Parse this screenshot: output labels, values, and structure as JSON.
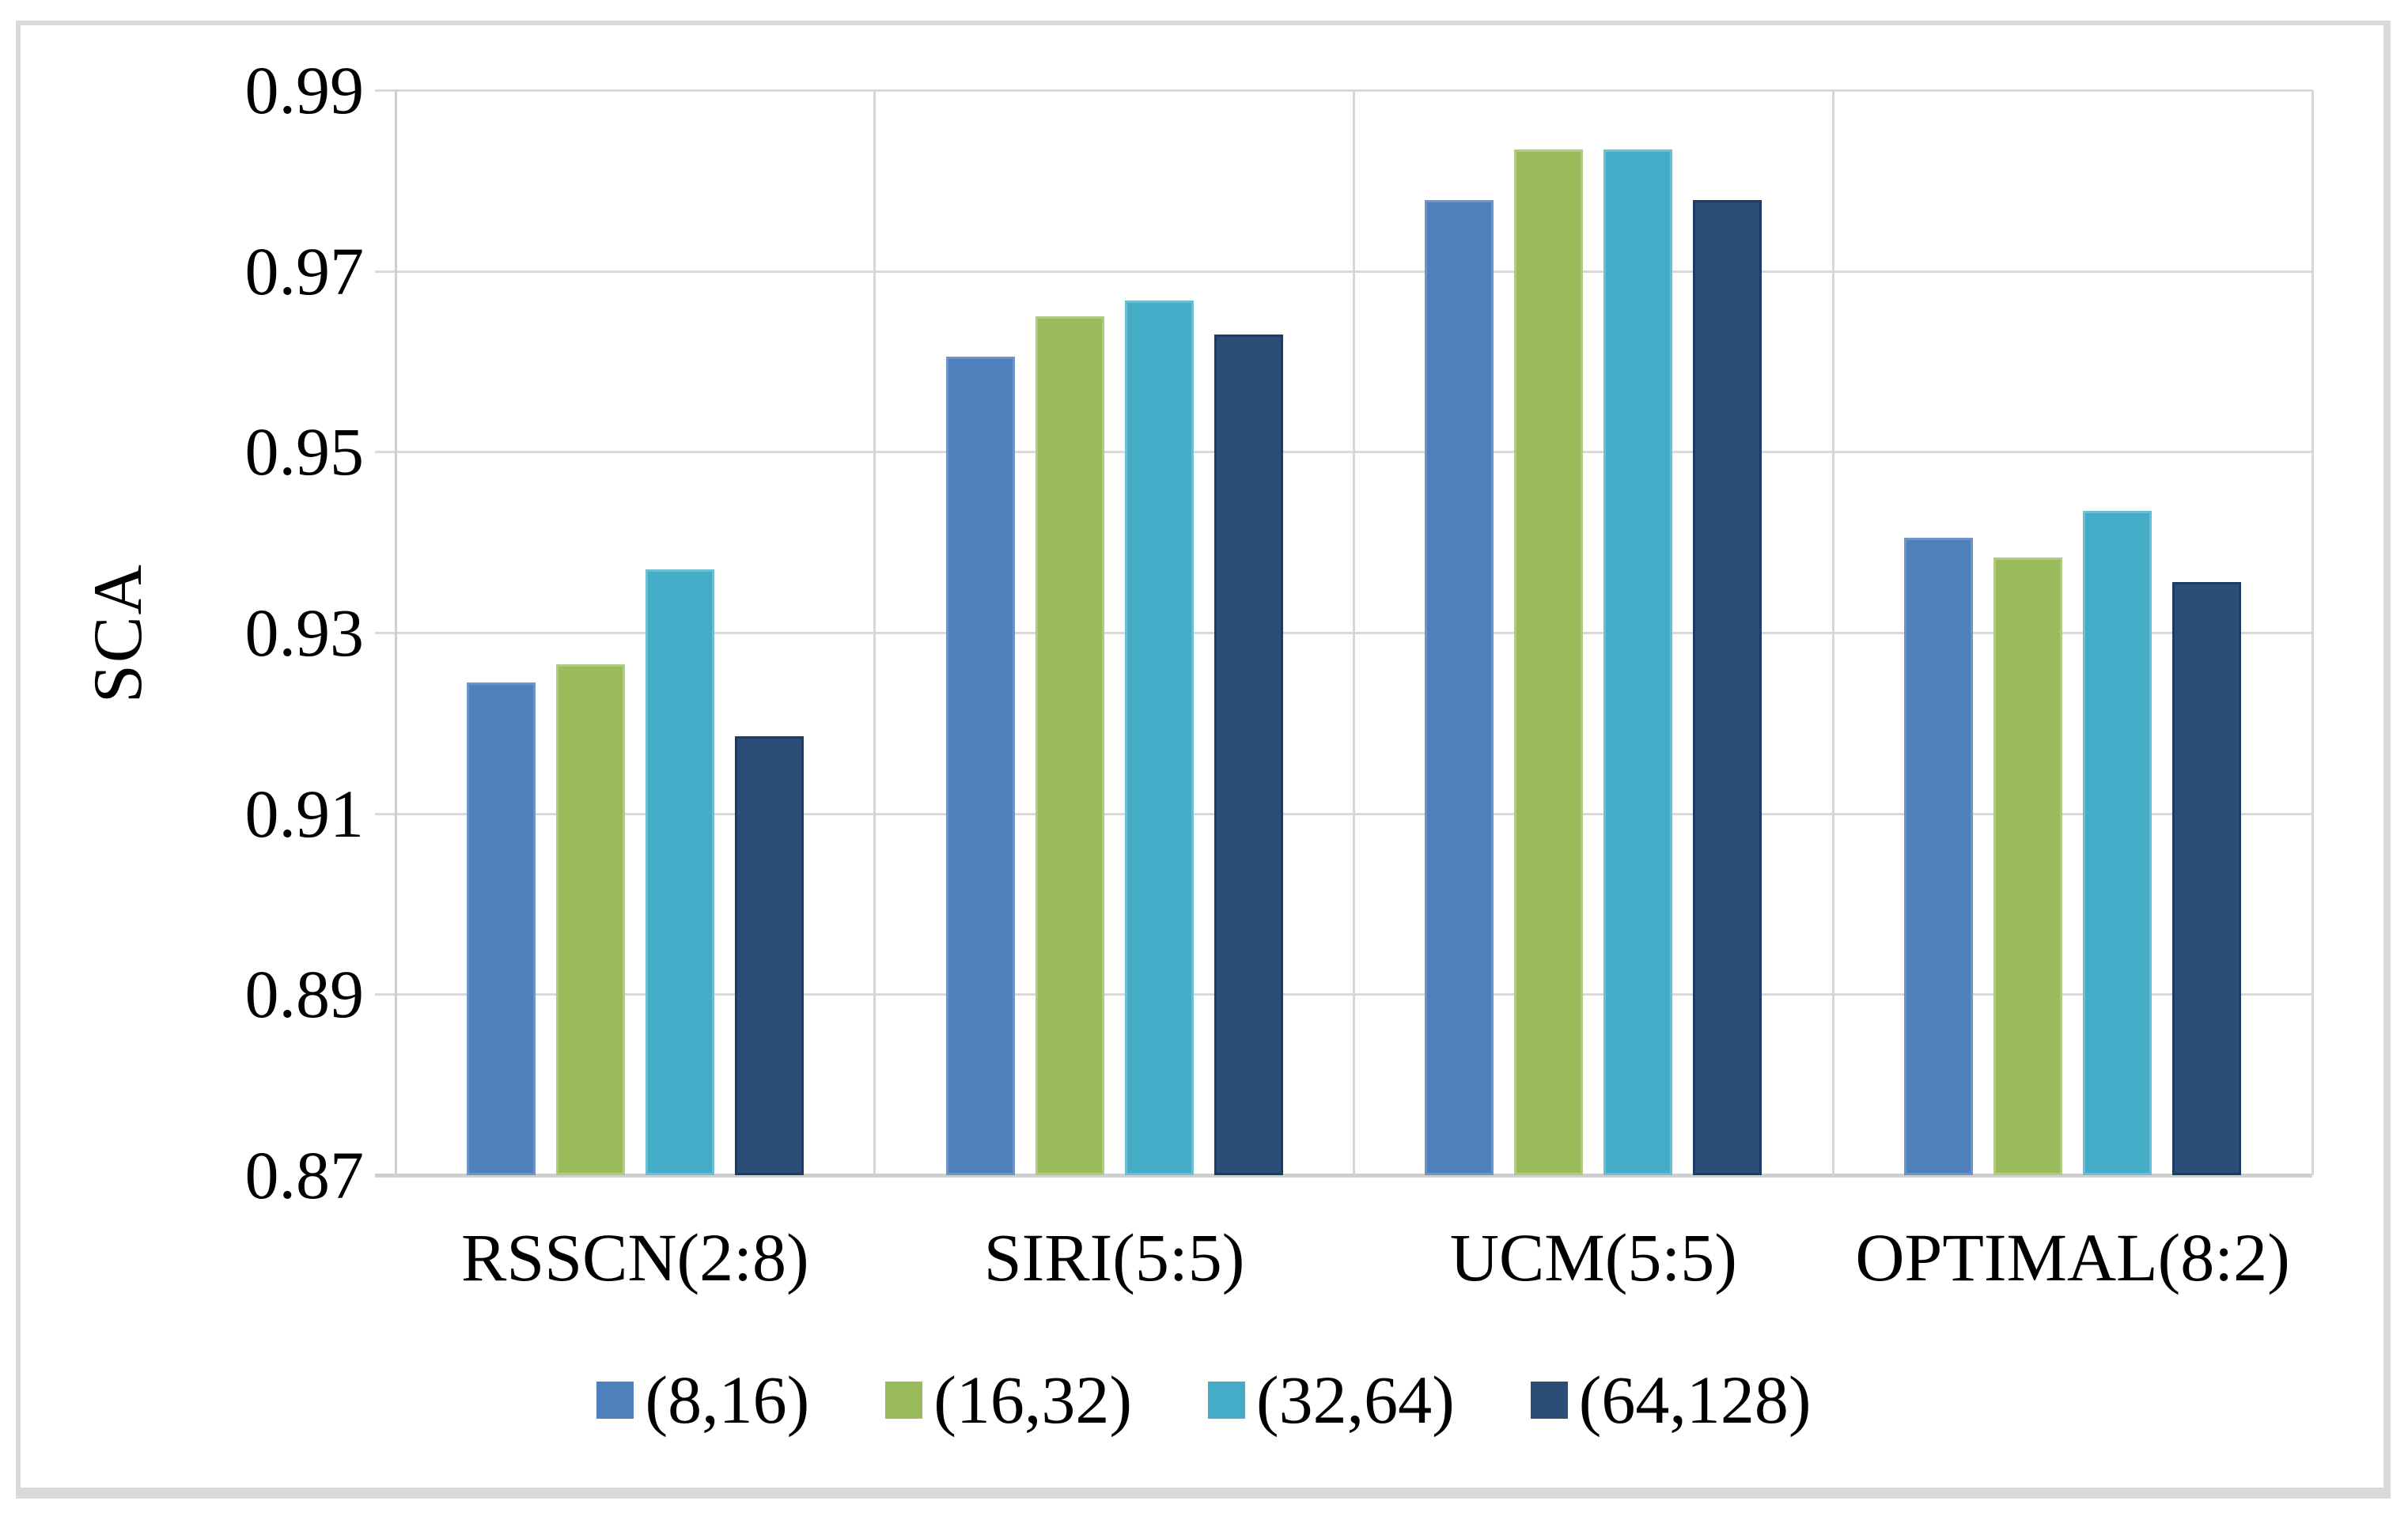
{
  "figure": {
    "background": "#ffffff",
    "frame_color": "#d9d9d9"
  },
  "chart_data": {
    "type": "bar",
    "title": "",
    "xlabel": "",
    "ylabel": "SCA",
    "ylim": [
      0.87,
      0.99
    ],
    "ytick_step": 0.02,
    "yticks": [
      "0.87",
      "0.89",
      "0.91",
      "0.93",
      "0.95",
      "0.97",
      "0.99"
    ],
    "grid": "horizontal-and-category-dividers",
    "legend_position": "bottom-center",
    "categories": [
      "RSSCN(2:8)",
      "SIRI(5:5)",
      "UCM(5:5)",
      "OPTIMAL(8:2)"
    ],
    "series": [
      {
        "name": "(8,16)",
        "color": "#4e81bc",
        "border_color": "#6c94c6",
        "values": [
          0.9245,
          0.9605,
          0.9778,
          0.9405
        ]
      },
      {
        "name": "(16,32)",
        "color": "#9abb59",
        "border_color": "#aecb7f",
        "values": [
          0.9265,
          0.965,
          0.9834,
          0.9383
        ]
      },
      {
        "name": "(32,64)",
        "color": "#45acc8",
        "border_color": "#6cbed2",
        "values": [
          0.937,
          0.9667,
          0.9834,
          0.9435
        ]
      },
      {
        "name": "(64,128)",
        "color": "#2c4d76",
        "border_color": "#1b3c69",
        "values": [
          0.9185,
          0.963,
          0.9778,
          0.9356
        ]
      }
    ],
    "colors": {
      "gridline": "#d9d9d9",
      "axis": "#cfcfcf",
      "text": "#000000"
    }
  }
}
